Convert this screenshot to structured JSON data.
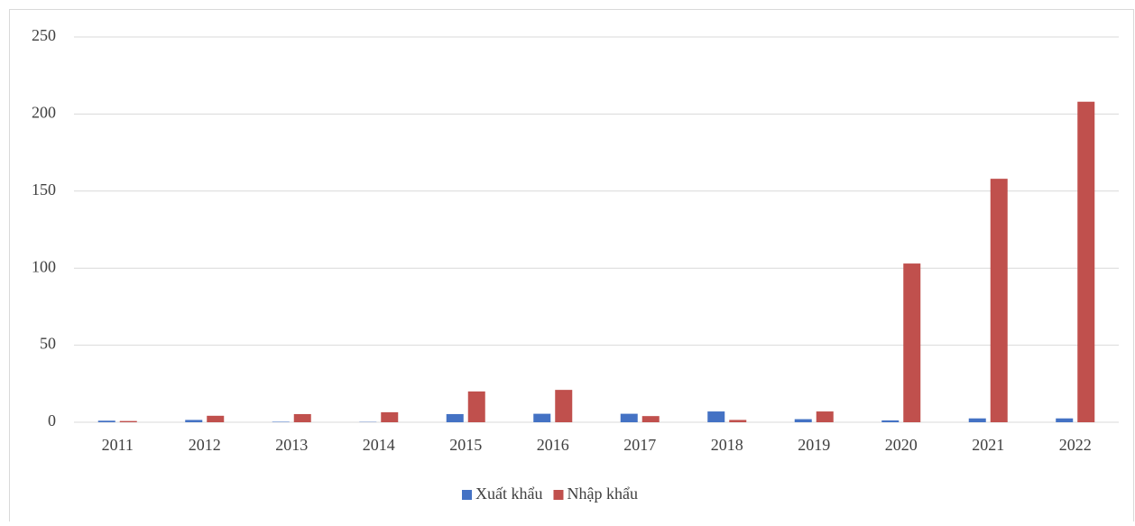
{
  "chart_data": {
    "type": "bar",
    "categories": [
      "2011",
      "2012",
      "2013",
      "2014",
      "2015",
      "2016",
      "2017",
      "2018",
      "2019",
      "2020",
      "2021",
      "2022"
    ],
    "series": [
      {
        "name": "Xuất khẩu",
        "color": "#4472c4",
        "values": [
          1,
          1.5,
          0.3,
          0.2,
          5.3,
          5.5,
          5.5,
          7,
          2,
          1.2,
          2.5,
          2.5
        ]
      },
      {
        "name": "Nhập khẩu",
        "color": "#c0504d",
        "values": [
          0.8,
          4.2,
          5.3,
          6.5,
          20,
          21,
          4,
          1.5,
          7,
          103,
          158,
          208
        ]
      }
    ],
    "ylim": [
      0,
      250
    ],
    "yticks": [
      0,
      50,
      100,
      150,
      200,
      250
    ],
    "grid": true,
    "legend": "bottom"
  }
}
